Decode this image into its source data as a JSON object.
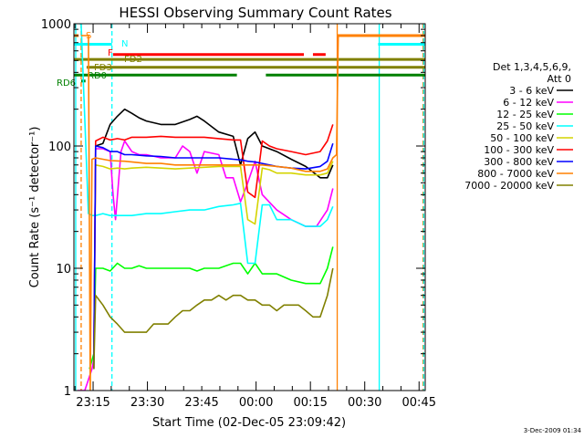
{
  "chart_data": {
    "type": "line",
    "title": "HESSI Observing Summary Count Rates",
    "xlabel": "Start Time (02-Dec-05 23:09:42)",
    "ylabel": "Count Rate (s⁻¹ detector⁻¹)",
    "yscale": "log",
    "ylim": [
      1,
      1000
    ],
    "xlim_minutes": [
      0,
      97
    ],
    "ytick_labels": [
      {
        "value": 1,
        "label": "1"
      },
      {
        "value": 10,
        "label": "10"
      },
      {
        "value": 100,
        "label": "100"
      },
      {
        "value": 1000,
        "label": "1000"
      }
    ],
    "xtick_labels": [
      {
        "minute": 5.3,
        "label": "23:15"
      },
      {
        "minute": 20.3,
        "label": "23:30"
      },
      {
        "minute": 35.3,
        "label": "23:45"
      },
      {
        "minute": 50.3,
        "label": "00:00"
      },
      {
        "minute": 65.3,
        "label": "00:15"
      },
      {
        "minute": 80.3,
        "label": "00:30"
      },
      {
        "minute": 95.3,
        "label": "00:45"
      }
    ],
    "legend": {
      "placement": "right",
      "header": [
        "Det 1,3,4,5,6,9,",
        "Att 0"
      ],
      "entries": [
        {
          "label": "3 - 6 keV",
          "color": "#000000"
        },
        {
          "label": "6 - 12 keV",
          "color": "#ff00ff"
        },
        {
          "label": "12 - 25 keV",
          "color": "#00ff00"
        },
        {
          "label": "25 - 50 keV",
          "color": "#00ffff"
        },
        {
          "label": "50 - 100 keV",
          "color": "#d4d400"
        },
        {
          "label": "100 - 300 keV",
          "color": "#ff0000"
        },
        {
          "label": "300 - 800 keV",
          "color": "#0000ff"
        },
        {
          "label": "800 - 7000 keV",
          "color": "#ff8000"
        },
        {
          "label": "7000 - 20000 keV",
          "color": "#808000"
        }
      ]
    },
    "series": [
      {
        "name": "3 - 6 keV",
        "color": "#000000",
        "x": [
          6,
          8,
          10,
          12,
          14,
          16,
          18,
          20,
          24,
          28,
          32,
          34,
          36,
          40,
          44,
          46,
          48,
          50,
          52,
          56,
          60,
          64,
          68,
          70,
          71.5
        ],
        "y": [
          100,
          105,
          150,
          175,
          200,
          185,
          170,
          160,
          150,
          150,
          165,
          175,
          160,
          130,
          120,
          70,
          115,
          130,
          100,
          90,
          78,
          68,
          55,
          55,
          70
        ]
      },
      {
        "name": "6 - 12 keV",
        "color": "#ff00ff",
        "x": [
          1,
          3,
          5,
          5.5,
          6,
          8,
          10,
          10.8,
          11.5,
          13,
          14,
          16,
          18,
          20,
          24,
          28,
          30,
          32,
          34,
          36,
          40,
          42,
          44,
          46,
          48,
          50,
          52,
          56,
          60,
          64,
          67,
          70,
          71.5
        ],
        "y": [
          1,
          1,
          1.5,
          1.8,
          95,
          95,
          90,
          40,
          25,
          90,
          110,
          90,
          85,
          85,
          80,
          80,
          100,
          90,
          60,
          90,
          85,
          55,
          55,
          35,
          50,
          75,
          40,
          30,
          25,
          22,
          22,
          30,
          45
        ]
      },
      {
        "name": "12 - 25 keV",
        "color": "#00ff00",
        "x": [
          4.3,
          5.5,
          6,
          8,
          10,
          12,
          14,
          16,
          18,
          20,
          24,
          28,
          32,
          34,
          36,
          40,
          44,
          46,
          48,
          50,
          52,
          56,
          60,
          64,
          68,
          70,
          71.5
        ],
        "y": [
          1.5,
          2,
          10,
          10,
          9.5,
          11,
          10,
          10,
          10.5,
          10,
          10,
          10,
          10,
          9.5,
          10,
          10,
          11,
          11,
          9,
          11,
          9,
          9,
          8,
          7.5,
          7.5,
          10,
          15
        ]
      },
      {
        "name": "25 - 50 keV",
        "color": "#00ffff",
        "x": [
          1.5,
          2,
          4,
          5,
          6,
          8,
          10,
          12,
          16,
          20,
          24,
          28,
          32,
          36,
          40,
          44,
          46,
          48,
          50,
          52,
          54,
          56,
          60,
          64,
          68,
          70,
          71.5
        ],
        "y": [
          1000,
          1000,
          28,
          27,
          27,
          28,
          27,
          27,
          27,
          28,
          28,
          29,
          30,
          30,
          32,
          33,
          34,
          11,
          11,
          33,
          33,
          25,
          25,
          22,
          22,
          25,
          32
        ]
      },
      {
        "name": "50 - 100 keV",
        "color": "#d4d400",
        "x": [
          5.5,
          6,
          8,
          10,
          12,
          14,
          16,
          20,
          24,
          28,
          32,
          36,
          40,
          44,
          46,
          48,
          50,
          52,
          54,
          56,
          60,
          64,
          68,
          70,
          71.5
        ],
        "y": [
          1.5,
          70,
          68,
          65,
          66,
          65,
          66,
          67,
          66,
          65,
          66,
          67,
          68,
          68,
          68,
          25,
          23,
          66,
          64,
          60,
          60,
          58,
          58,
          60,
          75
        ]
      },
      {
        "name": "100 - 300 keV",
        "color": "#ff0000",
        "x": [
          5.5,
          6,
          8,
          10,
          12,
          14,
          16,
          20,
          24,
          28,
          32,
          36,
          40,
          44,
          46,
          48,
          50,
          52,
          54,
          56,
          60,
          64,
          68,
          70,
          71.5
        ],
        "y": [
          1.5,
          110,
          118,
          112,
          115,
          112,
          118,
          118,
          120,
          118,
          118,
          118,
          115,
          112,
          112,
          42,
          38,
          110,
          100,
          95,
          90,
          85,
          90,
          110,
          150
        ]
      },
      {
        "name": "300 - 800 keV",
        "color": "#0000ff",
        "x": [
          5.5,
          6,
          8,
          10,
          12,
          14,
          16,
          20,
          24,
          28,
          32,
          36,
          40,
          44,
          46,
          48,
          50,
          52,
          54,
          56,
          60,
          64,
          68,
          70,
          71.5
        ],
        "y": [
          1.5,
          100,
          97,
          90,
          90,
          85,
          85,
          83,
          82,
          80,
          80,
          80,
          80,
          78,
          77,
          75,
          74,
          72,
          70,
          68,
          66,
          65,
          68,
          75,
          105
        ]
      },
      {
        "name": "800 - 7000 keV",
        "color": "#ff8000",
        "x": [
          2,
          3,
          4,
          4.5,
          5,
          6,
          8,
          10,
          14,
          20,
          24,
          28,
          32,
          36,
          40,
          44,
          48,
          52,
          56,
          60,
          64,
          68,
          70,
          71.5,
          72.5,
          73,
          97
        ],
        "y": [
          800,
          800,
          800,
          1,
          78,
          80,
          78,
          76,
          75,
          72,
          72,
          70,
          70,
          70,
          70,
          70,
          70,
          70,
          68,
          66,
          62,
          62,
          65,
          80,
          85,
          800,
          800
        ]
      },
      {
        "name": "7000 - 20000 keV",
        "color": "#808000",
        "x": [
          5.5,
          6,
          8,
          10,
          12,
          14,
          16,
          18,
          20,
          22,
          24,
          26,
          28,
          30,
          32,
          34,
          36,
          38,
          40,
          42,
          44,
          46,
          48,
          50,
          52,
          54,
          56,
          58,
          60,
          62,
          64,
          66,
          68,
          70,
          71.5
        ],
        "y": [
          1.5,
          6,
          5,
          4,
          3.5,
          3,
          3,
          3,
          3,
          3.5,
          3.5,
          3.5,
          4,
          4.5,
          4.5,
          5,
          5.5,
          5.5,
          6,
          5.5,
          6,
          6,
          5.5,
          5.5,
          5,
          5,
          4.5,
          5,
          5,
          5,
          4.5,
          4,
          4,
          6,
          10
        ]
      }
    ],
    "flag_labels": [
      {
        "label": "S",
        "color": "#ff8000"
      },
      {
        "label": "N",
        "color": "#00ffff"
      },
      {
        "label": "F",
        "color": "#ff0000"
      },
      {
        "label": "FD2",
        "color": "#808000"
      },
      {
        "label": "FD3",
        "color": "#808000"
      },
      {
        "label": "RD0",
        "color": "#008000"
      },
      {
        "label": "RD6",
        "color": "#008000"
      }
    ],
    "flag_bars": [
      {
        "label": "S",
        "color": "#ff8000",
        "level": 800,
        "segments": [
          [
            0,
            1.3
          ],
          [
            72.7,
            97
          ]
        ]
      },
      {
        "label": "N",
        "color": "#00ffff",
        "level": 680,
        "segments": [
          [
            0,
            10.5
          ],
          [
            84,
            97
          ]
        ]
      },
      {
        "label": "F",
        "color": "#ff0000",
        "level": 560,
        "segments": [
          [
            10.8,
            63.5
          ],
          [
            66,
            69.5
          ]
        ]
      },
      {
        "label": "FD2",
        "color": "#808000",
        "level": 510,
        "segments": [
          [
            0,
            97
          ]
        ]
      },
      {
        "label": "FD3",
        "color": "#808000",
        "level": 440,
        "segments": [
          [
            3.5,
            97
          ]
        ]
      },
      {
        "label": "RD0",
        "color": "#008000",
        "level": 380,
        "segments": [
          [
            0,
            45
          ],
          [
            53,
            97
          ]
        ]
      },
      {
        "label": "RD6",
        "color": "#008000",
        "level": 340,
        "segments": [
          [
            2,
            3.2
          ]
        ]
      }
    ],
    "vertical_markers": [
      {
        "minute": 0.5,
        "color": "#00ffff",
        "style": "solid"
      },
      {
        "minute": 2.0,
        "color": "#ff8000",
        "style": "dashed"
      },
      {
        "minute": 10.5,
        "color": "#00ffff",
        "style": "dashed"
      },
      {
        "minute": 72.7,
        "color": "#ff8000",
        "style": "solid"
      },
      {
        "minute": 84.3,
        "color": "#00ffff",
        "style": "solid"
      },
      {
        "minute": 96.4,
        "color": "#ff8000",
        "style": "dashed"
      },
      {
        "minute": 96.6,
        "color": "#00ffff",
        "style": "dashed"
      }
    ],
    "footer_stamp": "3-Dec-2009 01:34"
  }
}
